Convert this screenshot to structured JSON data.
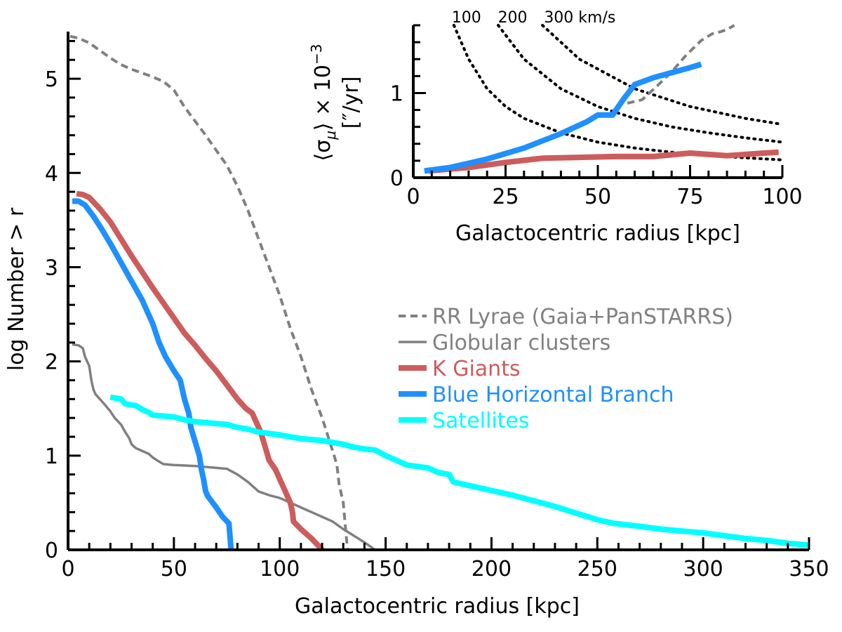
{
  "chart_data": [
    {
      "id": "main",
      "type": "line",
      "xlabel": "Galactocentric radius [kpc]",
      "ylabel": "log Number > r",
      "xlim": [
        0,
        350
      ],
      "ylim": [
        0,
        5.5
      ],
      "x_ticks": [
        "0",
        "50",
        "100",
        "150",
        "200",
        "250",
        "300",
        "350"
      ],
      "y_ticks": [
        "0",
        "1",
        "2",
        "3",
        "4",
        "5"
      ],
      "legend_position": "center-right",
      "series": [
        {
          "name": "RR Lyrae (Gaia+PanSTARRS)",
          "color": "#808080",
          "style": "dashed",
          "points": [
            [
              1,
              5.45
            ],
            [
              5,
              5.43
            ],
            [
              10,
              5.38
            ],
            [
              15,
              5.3
            ],
            [
              20,
              5.22
            ],
            [
              25,
              5.15
            ],
            [
              30,
              5.1
            ],
            [
              35,
              5.06
            ],
            [
              40,
              5.02
            ],
            [
              45,
              4.97
            ],
            [
              50,
              4.88
            ],
            [
              55,
              4.7
            ],
            [
              60,
              4.55
            ],
            [
              65,
              4.4
            ],
            [
              70,
              4.24
            ],
            [
              75,
              4.08
            ],
            [
              80,
              3.86
            ],
            [
              85,
              3.6
            ],
            [
              90,
              3.3
            ],
            [
              95,
              3.0
            ],
            [
              100,
              2.7
            ],
            [
              105,
              2.35
            ],
            [
              110,
              2.05
            ],
            [
              115,
              1.7
            ],
            [
              120,
              1.4
            ],
            [
              125,
              1.05
            ],
            [
              127,
              0.9
            ],
            [
              128,
              0.7
            ],
            [
              130,
              0.5
            ],
            [
              131,
              0.25
            ],
            [
              132,
              0.0
            ]
          ]
        },
        {
          "name": "Globular clusters",
          "color": "#808080",
          "style": "solid",
          "points": [
            [
              2,
              2.18
            ],
            [
              5,
              2.17
            ],
            [
              7,
              2.14
            ],
            [
              8,
              2.05
            ],
            [
              10,
              1.95
            ],
            [
              11,
              1.8
            ],
            [
              12,
              1.7
            ],
            [
              13,
              1.65
            ],
            [
              15,
              1.6
            ],
            [
              17,
              1.55
            ],
            [
              20,
              1.47
            ],
            [
              22,
              1.4
            ],
            [
              25,
              1.33
            ],
            [
              27,
              1.25
            ],
            [
              29,
              1.18
            ],
            [
              30,
              1.12
            ],
            [
              32,
              1.08
            ],
            [
              35,
              1.05
            ],
            [
              38,
              1.02
            ],
            [
              40,
              0.98
            ],
            [
              42,
              0.95
            ],
            [
              45,
              0.91
            ],
            [
              50,
              0.9
            ],
            [
              60,
              0.89
            ],
            [
              70,
              0.87
            ],
            [
              75,
              0.86
            ],
            [
              80,
              0.8
            ],
            [
              85,
              0.72
            ],
            [
              90,
              0.62
            ],
            [
              95,
              0.58
            ],
            [
              100,
              0.55
            ],
            [
              105,
              0.5
            ],
            [
              110,
              0.45
            ],
            [
              115,
              0.4
            ],
            [
              120,
              0.35
            ],
            [
              125,
              0.3
            ],
            [
              130,
              0.22
            ],
            [
              135,
              0.15
            ],
            [
              140,
              0.08
            ],
            [
              145,
              0.0
            ]
          ]
        },
        {
          "name": "K Giants",
          "color": "#cd5c5c",
          "style": "solid",
          "points": [
            [
              4,
              3.78
            ],
            [
              7,
              3.77
            ],
            [
              10,
              3.74
            ],
            [
              15,
              3.62
            ],
            [
              20,
              3.48
            ],
            [
              25,
              3.3
            ],
            [
              30,
              3.12
            ],
            [
              35,
              2.95
            ],
            [
              40,
              2.78
            ],
            [
              45,
              2.62
            ],
            [
              50,
              2.46
            ],
            [
              55,
              2.3
            ],
            [
              60,
              2.17
            ],
            [
              65,
              2.03
            ],
            [
              70,
              1.9
            ],
            [
              75,
              1.75
            ],
            [
              80,
              1.6
            ],
            [
              84,
              1.5
            ],
            [
              87,
              1.45
            ],
            [
              89,
              1.35
            ],
            [
              91,
              1.25
            ],
            [
              93,
              1.1
            ],
            [
              95,
              0.95
            ],
            [
              98,
              0.85
            ],
            [
              100,
              0.75
            ],
            [
              103,
              0.6
            ],
            [
              105,
              0.5
            ],
            [
              106,
              0.4
            ],
            [
              106.5,
              0.3
            ],
            [
              110,
              0.22
            ],
            [
              115,
              0.12
            ],
            [
              118,
              0.05
            ],
            [
              120,
              0.0
            ]
          ]
        },
        {
          "name": "Blue Horizontal Branch",
          "color": "#1e90ff",
          "style": "solid",
          "points": [
            [
              2,
              3.7
            ],
            [
              5,
              3.7
            ],
            [
              8,
              3.66
            ],
            [
              12,
              3.54
            ],
            [
              16,
              3.4
            ],
            [
              20,
              3.25
            ],
            [
              25,
              3.05
            ],
            [
              30,
              2.85
            ],
            [
              35,
              2.65
            ],
            [
              40,
              2.4
            ],
            [
              43,
              2.2
            ],
            [
              46,
              2.05
            ],
            [
              50,
              1.9
            ],
            [
              53,
              1.8
            ],
            [
              55,
              1.6
            ],
            [
              57,
              1.45
            ],
            [
              58,
              1.3
            ],
            [
              60,
              1.15
            ],
            [
              62,
              1.0
            ],
            [
              63,
              0.85
            ],
            [
              64,
              0.75
            ],
            [
              65,
              0.62
            ],
            [
              66,
              0.57
            ],
            [
              70,
              0.45
            ],
            [
              73,
              0.35
            ],
            [
              76,
              0.28
            ],
            [
              77,
              0.0
            ]
          ]
        },
        {
          "name": "Satellites",
          "color": "#00ffff",
          "style": "solid",
          "points": [
            [
              20,
              1.62
            ],
            [
              25,
              1.6
            ],
            [
              27,
              1.55
            ],
            [
              32,
              1.53
            ],
            [
              35,
              1.49
            ],
            [
              38,
              1.46
            ],
            [
              40,
              1.43
            ],
            [
              50,
              1.41
            ],
            [
              55,
              1.38
            ],
            [
              60,
              1.36
            ],
            [
              70,
              1.34
            ],
            [
              75,
              1.33
            ],
            [
              80,
              1.3
            ],
            [
              85,
              1.28
            ],
            [
              90,
              1.25
            ],
            [
              100,
              1.22
            ],
            [
              110,
              1.18
            ],
            [
              120,
              1.16
            ],
            [
              125,
              1.14
            ],
            [
              130,
              1.12
            ],
            [
              135,
              1.09
            ],
            [
              140,
              1.07
            ],
            [
              145,
              1.06
            ],
            [
              150,
              1.0
            ],
            [
              155,
              0.95
            ],
            [
              160,
              0.9
            ],
            [
              170,
              0.87
            ],
            [
              175,
              0.82
            ],
            [
              180,
              0.8
            ],
            [
              182,
              0.72
            ],
            [
              190,
              0.68
            ],
            [
              200,
              0.63
            ],
            [
              210,
              0.58
            ],
            [
              220,
              0.52
            ],
            [
              230,
              0.46
            ],
            [
              240,
              0.39
            ],
            [
              250,
              0.32
            ],
            [
              258,
              0.28
            ],
            [
              270,
              0.25
            ],
            [
              280,
              0.22
            ],
            [
              290,
              0.2
            ],
            [
              300,
              0.18
            ],
            [
              310,
              0.15
            ],
            [
              320,
              0.12
            ],
            [
              330,
              0.1
            ],
            [
              340,
              0.07
            ],
            [
              350,
              0.05
            ]
          ]
        }
      ]
    },
    {
      "id": "inset",
      "type": "line",
      "xlabel": "Galactocentric radius [kpc]",
      "ylabel_line1": "⟨σ",
      "ylabel_sub": "μ",
      "ylabel_line1b": "⟩ × 10",
      "ylabel_sup": "−3",
      "ylabel_line2": "[″/yr]",
      "xlim": [
        0,
        100
      ],
      "ylim": [
        0,
        1.8
      ],
      "x_ticks": [
        "0",
        "25",
        "50",
        "75",
        "100"
      ],
      "y_ticks": [
        "0",
        "1"
      ],
      "velocity_curves": {
        "labels": [
          "100",
          "200",
          "300 km/s"
        ],
        "curves": [
          {
            "points": [
              [
                11,
                1.8
              ],
              [
                15,
                1.4
              ],
              [
                20,
                1.05
              ],
              [
                25,
                0.84
              ],
              [
                30,
                0.7
              ],
              [
                40,
                0.53
              ],
              [
                50,
                0.42
              ],
              [
                60,
                0.35
              ],
              [
                70,
                0.3
              ],
              [
                80,
                0.26
              ],
              [
                90,
                0.235
              ],
              [
                100,
                0.21
              ]
            ]
          },
          {
            "points": [
              [
                23,
                1.8
              ],
              [
                30,
                1.4
              ],
              [
                40,
                1.05
              ],
              [
                50,
                0.84
              ],
              [
                60,
                0.7
              ],
              [
                70,
                0.6
              ],
              [
                80,
                0.53
              ],
              [
                90,
                0.47
              ],
              [
                100,
                0.42
              ]
            ]
          },
          {
            "points": [
              [
                35,
                1.8
              ],
              [
                45,
                1.4
              ],
              [
                60,
                1.05
              ],
              [
                75,
                0.84
              ],
              [
                90,
                0.7
              ],
              [
                100,
                0.63
              ]
            ]
          }
        ]
      },
      "series": [
        {
          "name": "RR Lyrae (Gaia+PanSTARRS)",
          "color": "#808080",
          "style": "dashed",
          "points": [
            [
              58,
              0.88
            ],
            [
              62,
              0.92
            ],
            [
              66,
              1.08
            ],
            [
              70,
              1.25
            ],
            [
              74,
              1.45
            ],
            [
              78,
              1.62
            ],
            [
              81,
              1.7
            ],
            [
              83,
              1.72
            ],
            [
              85,
              1.75
            ],
            [
              87,
              1.8
            ]
          ]
        },
        {
          "name": "K Giants",
          "color": "#cd5c5c",
          "style": "solid",
          "points": [
            [
              4,
              0.08
            ],
            [
              15,
              0.12
            ],
            [
              25,
              0.18
            ],
            [
              35,
              0.23
            ],
            [
              45,
              0.24
            ],
            [
              55,
              0.25
            ],
            [
              65,
              0.25
            ],
            [
              75,
              0.29
            ],
            [
              85,
              0.26
            ],
            [
              95,
              0.29
            ],
            [
              99,
              0.3
            ]
          ]
        },
        {
          "name": "Blue Horizontal Branch",
          "color": "#1e90ff",
          "style": "solid",
          "points": [
            [
              3,
              0.08
            ],
            [
              10,
              0.12
            ],
            [
              20,
              0.22
            ],
            [
              30,
              0.35
            ],
            [
              40,
              0.52
            ],
            [
              47,
              0.66
            ],
            [
              50,
              0.74
            ],
            [
              54,
              0.74
            ],
            [
              57,
              0.93
            ],
            [
              60,
              1.1
            ],
            [
              65,
              1.18
            ],
            [
              70,
              1.24
            ],
            [
              75,
              1.3
            ],
            [
              78,
              1.34
            ]
          ]
        }
      ]
    }
  ]
}
